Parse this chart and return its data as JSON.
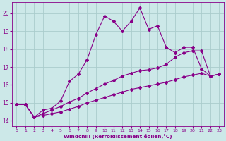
{
  "xlabel": "Windchill (Refroidissement éolien,°C)",
  "background_color": "#cce8e8",
  "grid_color": "#aacccc",
  "line_color": "#880088",
  "ylim": [
    13.7,
    20.6
  ],
  "xlim": [
    -0.5,
    23.5
  ],
  "yticks": [
    14,
    15,
    16,
    17,
    18,
    19,
    20
  ],
  "xticks": [
    0,
    1,
    2,
    3,
    4,
    5,
    6,
    7,
    8,
    9,
    10,
    11,
    12,
    13,
    14,
    15,
    16,
    17,
    18,
    19,
    20,
    21,
    22,
    23
  ],
  "line1_x": [
    0,
    1,
    2,
    3,
    4,
    5,
    6,
    7,
    8,
    9,
    10,
    11,
    12,
    13,
    14,
    15,
    16,
    17,
    18,
    19,
    20,
    21,
    22,
    23
  ],
  "line1_y": [
    14.9,
    14.9,
    14.2,
    14.6,
    14.7,
    15.1,
    16.2,
    16.6,
    17.4,
    18.8,
    19.85,
    19.55,
    19.0,
    19.55,
    20.3,
    19.1,
    19.3,
    18.1,
    17.8,
    18.1,
    18.1,
    16.9,
    16.5,
    16.6
  ],
  "line2_x": [
    0,
    1,
    2,
    3,
    4,
    5,
    6,
    7,
    8,
    9,
    10,
    11,
    12,
    13,
    14,
    15,
    16,
    17,
    18,
    19,
    20,
    21,
    22,
    23
  ],
  "line2_y": [
    14.9,
    14.9,
    14.2,
    14.4,
    14.6,
    14.8,
    15.05,
    15.25,
    15.55,
    15.8,
    16.05,
    16.25,
    16.5,
    16.65,
    16.8,
    16.85,
    16.95,
    17.15,
    17.55,
    17.8,
    17.9,
    17.9,
    16.5,
    16.6
  ],
  "line3_x": [
    0,
    1,
    2,
    3,
    4,
    5,
    6,
    7,
    8,
    9,
    10,
    11,
    12,
    13,
    14,
    15,
    16,
    17,
    18,
    19,
    20,
    21,
    22,
    23
  ],
  "line3_y": [
    14.9,
    14.9,
    14.2,
    14.3,
    14.4,
    14.5,
    14.65,
    14.8,
    15.0,
    15.15,
    15.3,
    15.45,
    15.6,
    15.75,
    15.85,
    15.95,
    16.05,
    16.15,
    16.3,
    16.45,
    16.55,
    16.65,
    16.5,
    16.6
  ]
}
